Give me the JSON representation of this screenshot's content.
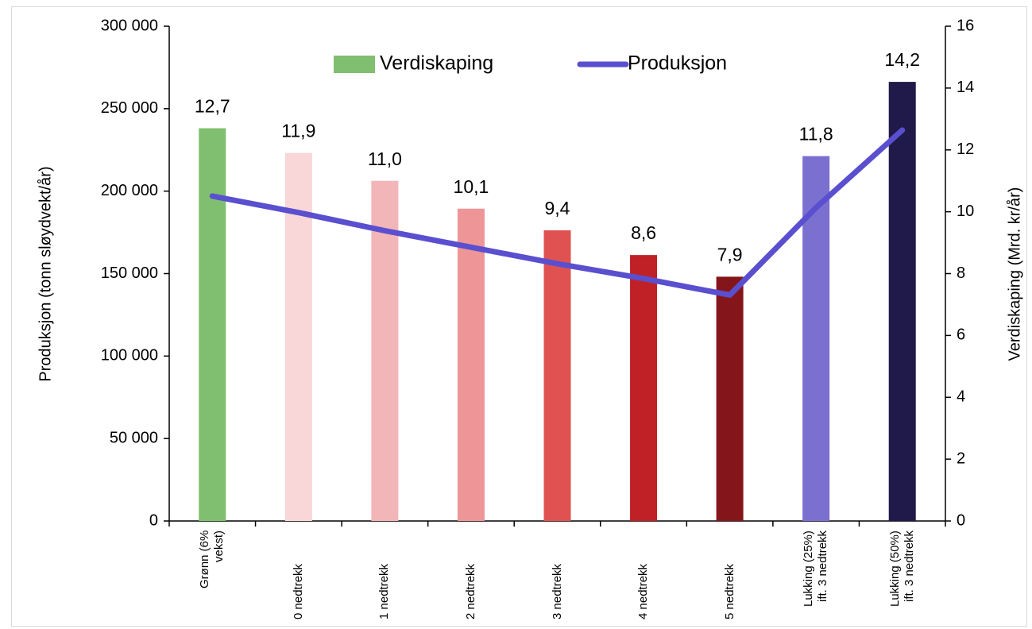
{
  "chart_data": {
    "type": "bar_line",
    "categories": [
      "Grønn (6% vekst)",
      "0 nedtrekk",
      "1 nedtrekk",
      "2 nedtrekk",
      "3 nedtrekk",
      "4 nedtrekk",
      "5 nedtrekk",
      "Lukking (25%) ift. 3 nedtrekk",
      "Lukking (50%) ift. 3 nedtrekk"
    ],
    "series": [
      {
        "name": "Verdiskaping",
        "type": "bar",
        "axis": "y2",
        "color": "#7fbf6f",
        "colors": [
          "#7fbf6f",
          "#f9d6d8",
          "#f2b5b8",
          "#ee9598",
          "#e05252",
          "#c02126",
          "#84161b",
          "#7b6fd0",
          "#1f1a4a"
        ],
        "values": [
          12.7,
          11.9,
          11.0,
          10.1,
          9.4,
          8.6,
          7.9,
          11.8,
          14.2
        ],
        "value_labels": [
          "12,7",
          "11,9",
          "11,0",
          "10,1",
          "9,4",
          "8,6",
          "7,9",
          "11,8",
          "14,2"
        ]
      },
      {
        "name": "Produksjon",
        "type": "line",
        "axis": "y",
        "color": "#5a4fcf",
        "values": [
          197000,
          187000,
          176000,
          166000,
          156000,
          147000,
          137000,
          190000,
          237000
        ]
      }
    ],
    "ylabel": "Produksjon (tonn sløydvekt/år)",
    "y2label": "Verdiskaping (Mrd. kr/år)",
    "ylim": [
      0,
      300000
    ],
    "yticks": [
      0,
      {
        "value": 50000,
        "label": "50 000"
      },
      {
        "value": 100000,
        "label": "100 000"
      },
      {
        "value": 150000,
        "label": "150 000"
      },
      {
        "value": 200000,
        "label": "200 000"
      },
      {
        "value": 250000,
        "label": "250 000"
      },
      {
        "value": 300000,
        "label": "300 000"
      }
    ],
    "y2lim": [
      0,
      16
    ],
    "y2ticks": [
      0,
      2,
      4,
      6,
      8,
      10,
      12,
      14,
      16
    ],
    "legend": "top"
  }
}
